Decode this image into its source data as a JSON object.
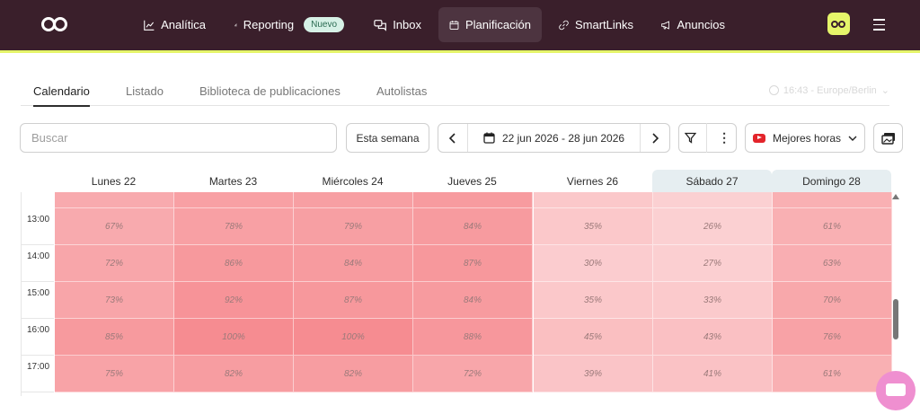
{
  "nav": {
    "items": [
      {
        "label": "Analítica",
        "icon": "chart-line-icon"
      },
      {
        "label": "Reporting",
        "icon": "bar-chart-icon",
        "badge": "Nuevo"
      },
      {
        "label": "Inbox",
        "icon": "chat-bubbles-icon"
      },
      {
        "label": "Planificación",
        "icon": "calendar-icon",
        "active": true
      },
      {
        "label": "SmartLinks",
        "icon": "link-icon"
      },
      {
        "label": "Anuncios",
        "icon": "megaphone-icon"
      }
    ]
  },
  "tabs": [
    {
      "label": "Calendario",
      "active": true
    },
    {
      "label": "Listado"
    },
    {
      "label": "Biblioteca de publicaciones"
    },
    {
      "label": "Autolistas"
    }
  ],
  "timezone": "16:43 - Europe/Berlin",
  "toolbar": {
    "search_placeholder": "Buscar",
    "this_week": "Esta semana",
    "date_range": "22 jun 2026 - 28 jun 2026",
    "best_hours": "Mejores horas"
  },
  "days": [
    {
      "label": "Lunes 22"
    },
    {
      "label": "Martes 23"
    },
    {
      "label": "Miércoles 24"
    },
    {
      "label": "Jueves 25"
    },
    {
      "label": "Viernes 26"
    },
    {
      "label": "Sábado 27",
      "weekend": true
    },
    {
      "label": "Domingo 28",
      "weekend": true
    }
  ],
  "rows": [
    {
      "time": "13:00",
      "values": [
        "67%",
        "78%",
        "79%",
        "84%",
        "35%",
        "26%",
        "61%"
      ]
    },
    {
      "time": "14:00",
      "values": [
        "72%",
        "86%",
        "84%",
        "87%",
        "30%",
        "27%",
        "63%"
      ]
    },
    {
      "time": "15:00",
      "values": [
        "73%",
        "92%",
        "87%",
        "84%",
        "35%",
        "33%",
        "70%"
      ]
    },
    {
      "time": "16:00",
      "values": [
        "85%",
        "100%",
        "100%",
        "88%",
        "45%",
        "43%",
        "76%"
      ]
    },
    {
      "time": "17:00",
      "values": [
        "75%",
        "82%",
        "82%",
        "72%",
        "39%",
        "41%",
        "61%"
      ]
    }
  ],
  "colors": {
    "nav_bg": "#3a1f2b",
    "accent": "#e5f56a",
    "heat": "#f47f85"
  }
}
